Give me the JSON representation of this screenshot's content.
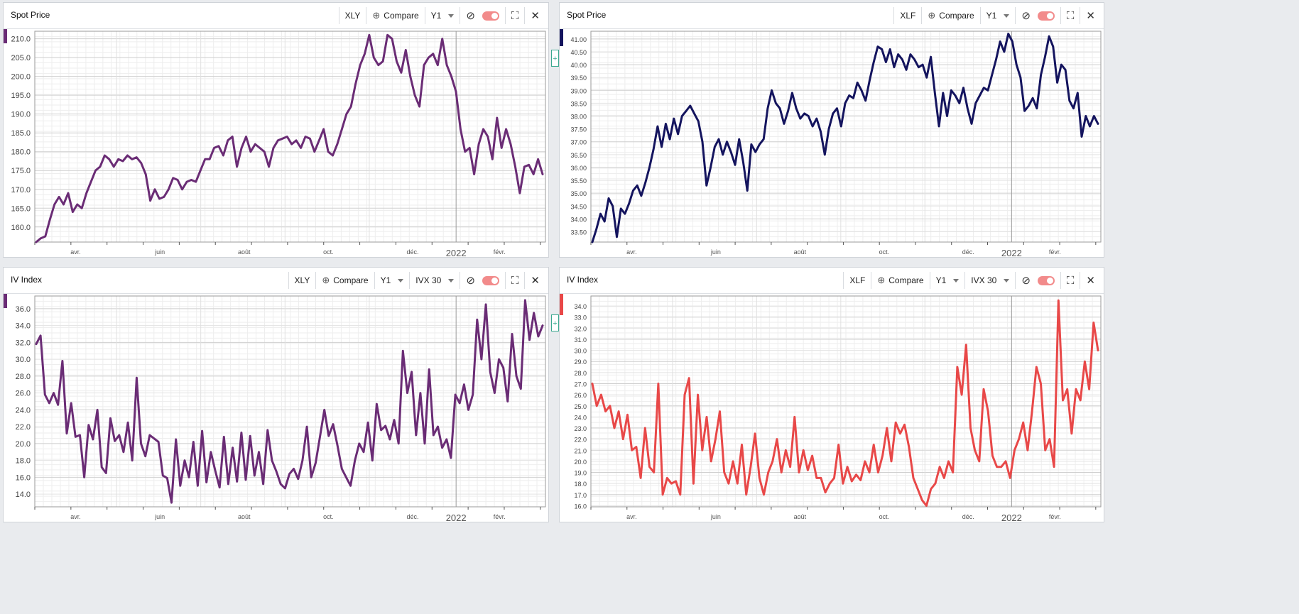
{
  "colors": {
    "xly": "#6a2c75",
    "xlf": "#14145e",
    "iv_xlf": "#e84848",
    "grid": "#d9d9d9",
    "toggle": "#f28b8b",
    "accent": "#3aa88f"
  },
  "panels": [
    {
      "title": "Spot Price",
      "ticker": "XLY",
      "compare_label": "Compare",
      "period": "Y1",
      "measure": "",
      "x_labels": [
        "avr.",
        "juin",
        "août",
        "oct.",
        "déc.",
        "2022",
        "févr."
      ],
      "chart_data": {
        "type": "line",
        "title": "",
        "xlabel": "",
        "ylabel": "",
        "ylim": [
          156,
          212
        ],
        "y_ticks": [
          "160.0",
          "165.0",
          "170.0",
          "175.0",
          "180.0",
          "185.0",
          "190.0",
          "195.0",
          "200.0",
          "205.0",
          "210.0"
        ],
        "series": [
          {
            "values": [
              156,
              157,
              157.5,
              162,
              166,
              168,
              166,
              169,
              164,
              166,
              165,
              169,
              172,
              175,
              176,
              179,
              178,
              176,
              178,
              177.5,
              179,
              178,
              178.5,
              177,
              174,
              167,
              170,
              167.5,
              168,
              170,
              173,
              172.5,
              170,
              172,
              172.5,
              172,
              175,
              178,
              178,
              181,
              181.5,
              179,
              183,
              184,
              176,
              181,
              184,
              180,
              182,
              181,
              180,
              176,
              181,
              183,
              183.5,
              184,
              182,
              183,
              181,
              184,
              183.5,
              180,
              183,
              186,
              180,
              179,
              182,
              186,
              190,
              192,
              198,
              203,
              206,
              211,
              205,
              203,
              204,
              211,
              210,
              204,
              201,
              207,
              200,
              195,
              192,
              203,
              205,
              206,
              203,
              210,
              203,
              200,
              196,
              186,
              180,
              181,
              174,
              182,
              186,
              184,
              178,
              189,
              181,
              186,
              182,
              176,
              169,
              176,
              176.5,
              174,
              178,
              174
            ]
          }
        ]
      }
    },
    {
      "title": "Spot Price",
      "ticker": "XLF",
      "compare_label": "Compare",
      "period": "Y1",
      "measure": "",
      "x_labels": [
        "avr.",
        "juin",
        "août",
        "oct.",
        "déc.",
        "2022",
        "févr."
      ],
      "chart_data": {
        "type": "line",
        "title": "",
        "xlabel": "",
        "ylabel": "",
        "ylim": [
          33.1,
          41.3
        ],
        "y_ticks": [
          "33.50",
          "34.00",
          "34.50",
          "35.00",
          "35.50",
          "36.00",
          "36.50",
          "37.00",
          "37.50",
          "38.00",
          "38.50",
          "39.00",
          "39.50",
          "40.00",
          "40.50",
          "41.00"
        ],
        "series": [
          {
            "values": [
              33.1,
              33.6,
              34.2,
              33.9,
              34.8,
              34.5,
              33.3,
              34.4,
              34.2,
              34.6,
              35.1,
              35.3,
              34.9,
              35.4,
              36.0,
              36.7,
              37.6,
              36.8,
              37.7,
              37.1,
              37.9,
              37.3,
              38.0,
              38.2,
              38.4,
              38.1,
              37.8,
              37.0,
              35.3,
              36.0,
              36.8,
              37.1,
              36.5,
              37.0,
              36.6,
              36.1,
              37.1,
              36.2,
              35.1,
              36.9,
              36.6,
              36.9,
              37.1,
              38.3,
              39.0,
              38.5,
              38.3,
              37.7,
              38.2,
              38.9,
              38.3,
              37.9,
              38.1,
              38.0,
              37.6,
              37.9,
              37.4,
              36.5,
              37.5,
              38.1,
              38.3,
              37.6,
              38.5,
              38.8,
              38.7,
              39.3,
              39.0,
              38.6,
              39.4,
              40.1,
              40.7,
              40.6,
              40.1,
              40.6,
              39.9,
              40.4,
              40.2,
              39.8,
              40.4,
              40.2,
              39.9,
              40.0,
              39.5,
              40.3,
              38.9,
              37.6,
              38.9,
              38.0,
              39.0,
              38.8,
              38.5,
              39.1,
              38.3,
              37.7,
              38.5,
              38.8,
              39.1,
              39.0,
              39.6,
              40.2,
              40.9,
              40.5,
              41.2,
              40.9,
              40.0,
              39.5,
              38.2,
              38.4,
              38.7,
              38.3,
              39.6,
              40.3,
              41.1,
              40.7,
              39.3,
              40.0,
              39.8,
              38.6,
              38.3,
              38.9,
              37.2,
              38.0,
              37.6,
              38.0,
              37.7
            ]
          }
        ]
      }
    },
    {
      "title": "IV Index",
      "ticker": "XLY",
      "compare_label": "Compare",
      "period": "Y1",
      "measure": "IVX 30",
      "x_labels": [
        "avr.",
        "juin",
        "août",
        "oct.",
        "déc.",
        "2022",
        "févr."
      ],
      "chart_data": {
        "type": "line",
        "title": "",
        "xlabel": "",
        "ylabel": "",
        "ylim": [
          12.5,
          37.5
        ],
        "y_ticks": [
          "14.0",
          "16.0",
          "18.0",
          "20.0",
          "22.0",
          "24.0",
          "26.0",
          "28.0",
          "30.0",
          "32.0",
          "34.0",
          "36.0"
        ],
        "series": [
          {
            "values": [
              31.8,
              32.8,
              25.8,
              24.8,
              26.0,
              24.6,
              29.8,
              21.2,
              24.8,
              20.8,
              21.0,
              16.0,
              22.2,
              20.5,
              24.0,
              17.2,
              16.5,
              23.0,
              20.3,
              21.0,
              19.0,
              22.5,
              18.0,
              27.8,
              20.0,
              18.5,
              21.0,
              20.6,
              20.2,
              16.2,
              15.9,
              13.0,
              20.5,
              15.0,
              18.0,
              16.0,
              20.2,
              15.0,
              21.5,
              15.4,
              19.0,
              16.8,
              14.8,
              20.8,
              15.2,
              19.5,
              15.5,
              21.3,
              15.7,
              20.9,
              16.2,
              19.0,
              15.2,
              21.6,
              18.0,
              16.7,
              15.2,
              14.7,
              16.4,
              17.0,
              15.8,
              18.0,
              22.0,
              16.0,
              17.7,
              20.8,
              24.0,
              20.9,
              22.3,
              19.8,
              17.0,
              16.0,
              15.0,
              18.0,
              20.0,
              19.0,
              22.5,
              18.0,
              24.7,
              21.6,
              22.1,
              20.5,
              22.8,
              20.0,
              31.0,
              26.0,
              28.5,
              21.0,
              26.0,
              20.0,
              28.8,
              21.0,
              22.0,
              19.5,
              20.5,
              18.3,
              25.8,
              24.8,
              27.0,
              24.0,
              25.8,
              34.7,
              30.0,
              36.5,
              28.5,
              26.0,
              30.0,
              29.0,
              25.0,
              33.0,
              28.0,
              26.5,
              37.0,
              32.3,
              35.5,
              32.7,
              34.0
            ]
          }
        ]
      }
    },
    {
      "title": "IV Index",
      "ticker": "XLF",
      "compare_label": "Compare",
      "period": "Y1",
      "measure": "IVX 30",
      "x_labels": [
        "avr.",
        "juin",
        "août",
        "oct.",
        "déc.",
        "2022",
        "févr."
      ],
      "chart_data": {
        "type": "line",
        "title": "",
        "xlabel": "",
        "ylabel": "",
        "ylim": [
          15.9,
          34.9
        ],
        "y_ticks": [
          "16.0",
          "17.0",
          "18.0",
          "19.0",
          "20.0",
          "21.0",
          "22.0",
          "23.0",
          "24.0",
          "25.0",
          "26.0",
          "27.0",
          "28.0",
          "29.0",
          "30.0",
          "31.0",
          "32.0",
          "33.0",
          "34.0"
        ],
        "series": [
          {
            "values": [
              27.0,
              25.0,
              26.0,
              24.5,
              25.0,
              23.0,
              24.5,
              22.0,
              24.2,
              21.0,
              21.3,
              18.5,
              23.0,
              19.5,
              19.0,
              27.0,
              17.0,
              18.5,
              18.0,
              18.2,
              17.0,
              26.0,
              27.5,
              18.0,
              26.0,
              21.0,
              24.0,
              20.0,
              22.0,
              24.5,
              19.0,
              18.0,
              20.0,
              18.0,
              21.5,
              17.0,
              19.5,
              22.5,
              18.5,
              17.0,
              19.0,
              20.0,
              22.0,
              19.0,
              21.0,
              19.5,
              24.0,
              19.0,
              21.0,
              19.2,
              20.5,
              18.5,
              18.5,
              17.2,
              18.0,
              18.5,
              21.5,
              18.0,
              19.5,
              18.2,
              18.8,
              18.3,
              20.0,
              19.0,
              21.5,
              19.0,
              20.5,
              23.0,
              20.0,
              23.5,
              22.5,
              23.3,
              21.3,
              18.5,
              17.5,
              16.5,
              16.0,
              17.5,
              18.0,
              19.5,
              18.5,
              20.0,
              19.0,
              28.5,
              26.0,
              30.5,
              23.0,
              21.0,
              20.0,
              26.5,
              24.5,
              20.5,
              19.5,
              19.5,
              20.0,
              18.5,
              21.0,
              22.0,
              23.5,
              21.0,
              24.5,
              28.5,
              27.0,
              21.0,
              22.0,
              19.5,
              34.5,
              25.5,
              26.5,
              22.5,
              26.5,
              25.5,
              29.0,
              26.5,
              32.5,
              30.0
            ]
          }
        ]
      }
    }
  ]
}
